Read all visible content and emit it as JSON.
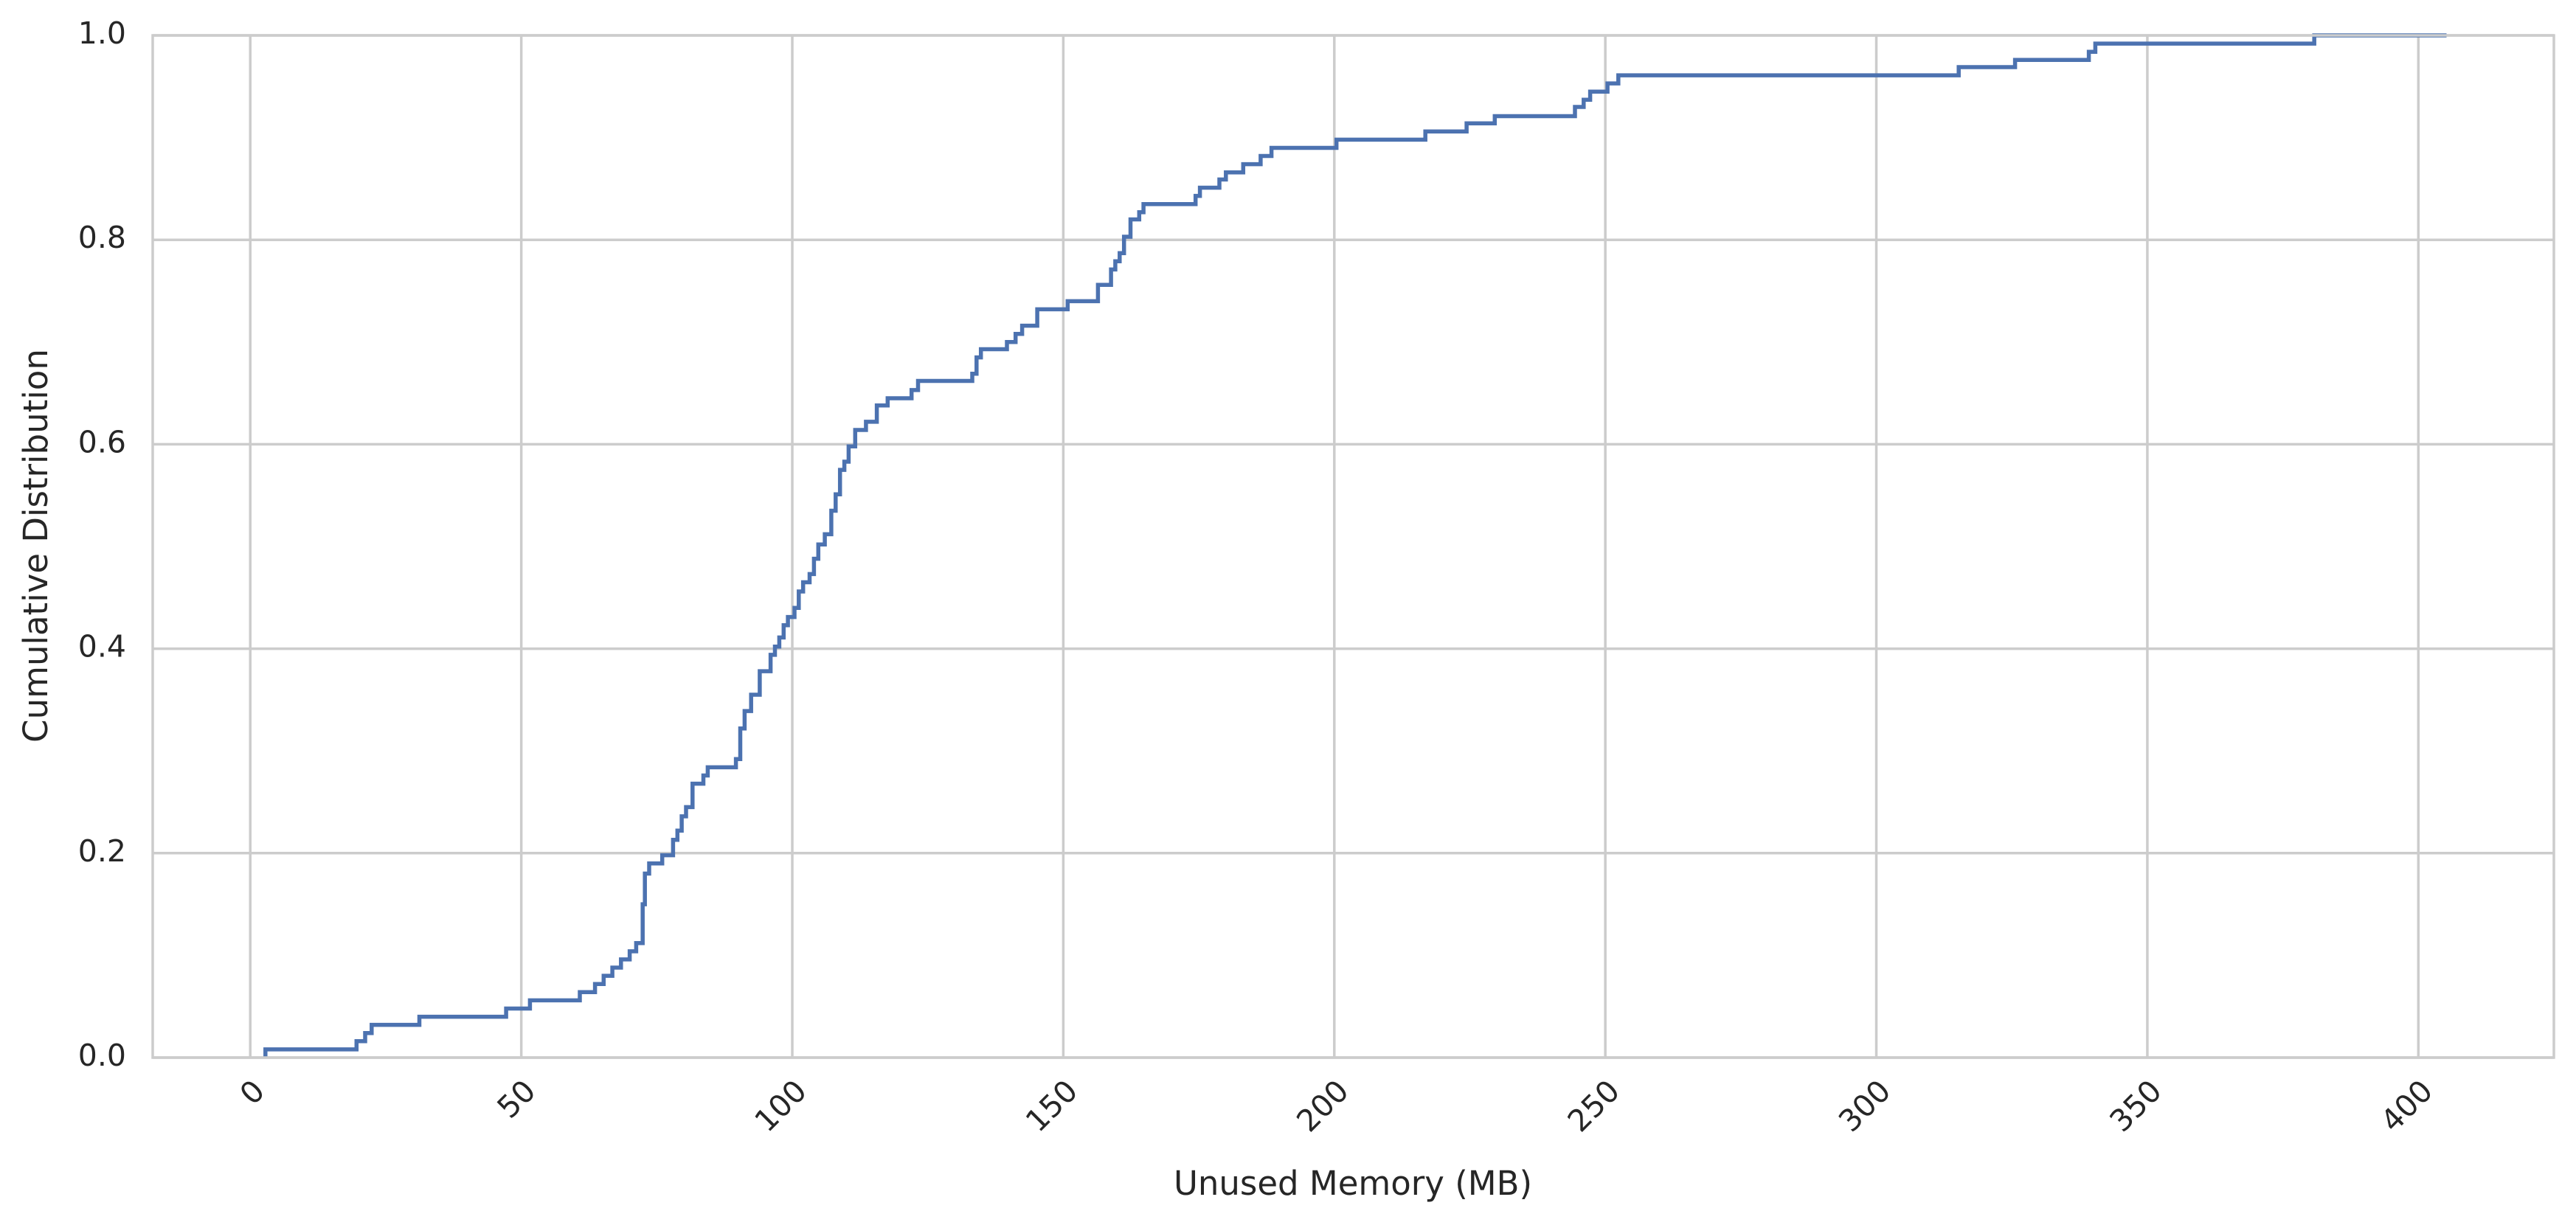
{
  "chart_data": {
    "type": "line",
    "drawstyle": "steps-post",
    "title": "",
    "xlabel": "Unused Memory (MB)",
    "ylabel": "Cumulative Distribution",
    "xlim": [
      -18,
      425
    ],
    "ylim": [
      0,
      1
    ],
    "xticks": [
      0,
      50,
      100,
      150,
      200,
      250,
      300,
      350,
      400
    ],
    "yticks": [
      0.0,
      0.2,
      0.4,
      0.6,
      0.8,
      1.0
    ],
    "xtick_labels": [
      "0",
      "50",
      "100",
      "150",
      "200",
      "250",
      "300",
      "350",
      "400"
    ],
    "ytick_labels": [
      "0.0",
      "0.2",
      "0.4",
      "0.6",
      "0.8",
      "1.0"
    ],
    "grid": true,
    "legend": "none",
    "colors": {
      "line": "#4c72b0",
      "grid": "#cccccc",
      "text": "#262626"
    },
    "series": [
      {
        "x": [
          2.8,
          19.6,
          21.2,
          22.4,
          31.2,
          47.2,
          51.6,
          60.8,
          63.6,
          65.2,
          66.8,
          68.4,
          70.0,
          71.2,
          72.4,
          72.8,
          73.6,
          76.0,
          78.0,
          78.8,
          79.6,
          80.4,
          81.6,
          83.6,
          84.4,
          89.6,
          90.4,
          91.2,
          92.4,
          94.0,
          96.0,
          96.8,
          97.6,
          98.4,
          99.2,
          100.4,
          101.2,
          102.0,
          103.2,
          104.0,
          104.8,
          106.0,
          107.2,
          108.0,
          108.8,
          109.6,
          110.4,
          111.6,
          113.6,
          115.6,
          117.6,
          122.0,
          123.2,
          133.2,
          134.0,
          134.8,
          139.6,
          141.2,
          142.4,
          145.2,
          150.8,
          156.4,
          158.8,
          159.6,
          160.4,
          161.2,
          162.4,
          164.0,
          164.8,
          174.4,
          175.2,
          178.8,
          180.0,
          183.2,
          186.4,
          188.4,
          200.4,
          216.8,
          224.4,
          229.6,
          244.4,
          246.0,
          247.2,
          250.4,
          252.4,
          315.2,
          325.6,
          339.2,
          340.4,
          380.8,
          405.2
        ],
        "y": [
          0.008,
          0.016,
          0.024,
          0.032,
          0.04,
          0.048,
          0.056,
          0.064,
          0.072,
          0.08,
          0.088,
          0.096,
          0.104,
          0.112,
          0.15,
          0.18,
          0.19,
          0.198,
          0.213,
          0.222,
          0.236,
          0.245,
          0.268,
          0.276,
          0.284,
          0.292,
          0.322,
          0.339,
          0.355,
          0.378,
          0.394,
          0.402,
          0.411,
          0.423,
          0.431,
          0.44,
          0.456,
          0.465,
          0.473,
          0.488,
          0.502,
          0.512,
          0.535,
          0.551,
          0.575,
          0.583,
          0.598,
          0.614,
          0.622,
          0.638,
          0.645,
          0.653,
          0.662,
          0.669,
          0.685,
          0.693,
          0.7,
          0.708,
          0.716,
          0.732,
          0.74,
          0.756,
          0.771,
          0.779,
          0.787,
          0.803,
          0.82,
          0.827,
          0.835,
          0.843,
          0.851,
          0.859,
          0.866,
          0.874,
          0.882,
          0.89,
          0.898,
          0.906,
          0.914,
          0.921,
          0.93,
          0.937,
          0.945,
          0.953,
          0.961,
          0.969,
          0.976,
          0.984,
          0.992,
          1.0,
          1.0
        ]
      }
    ]
  }
}
